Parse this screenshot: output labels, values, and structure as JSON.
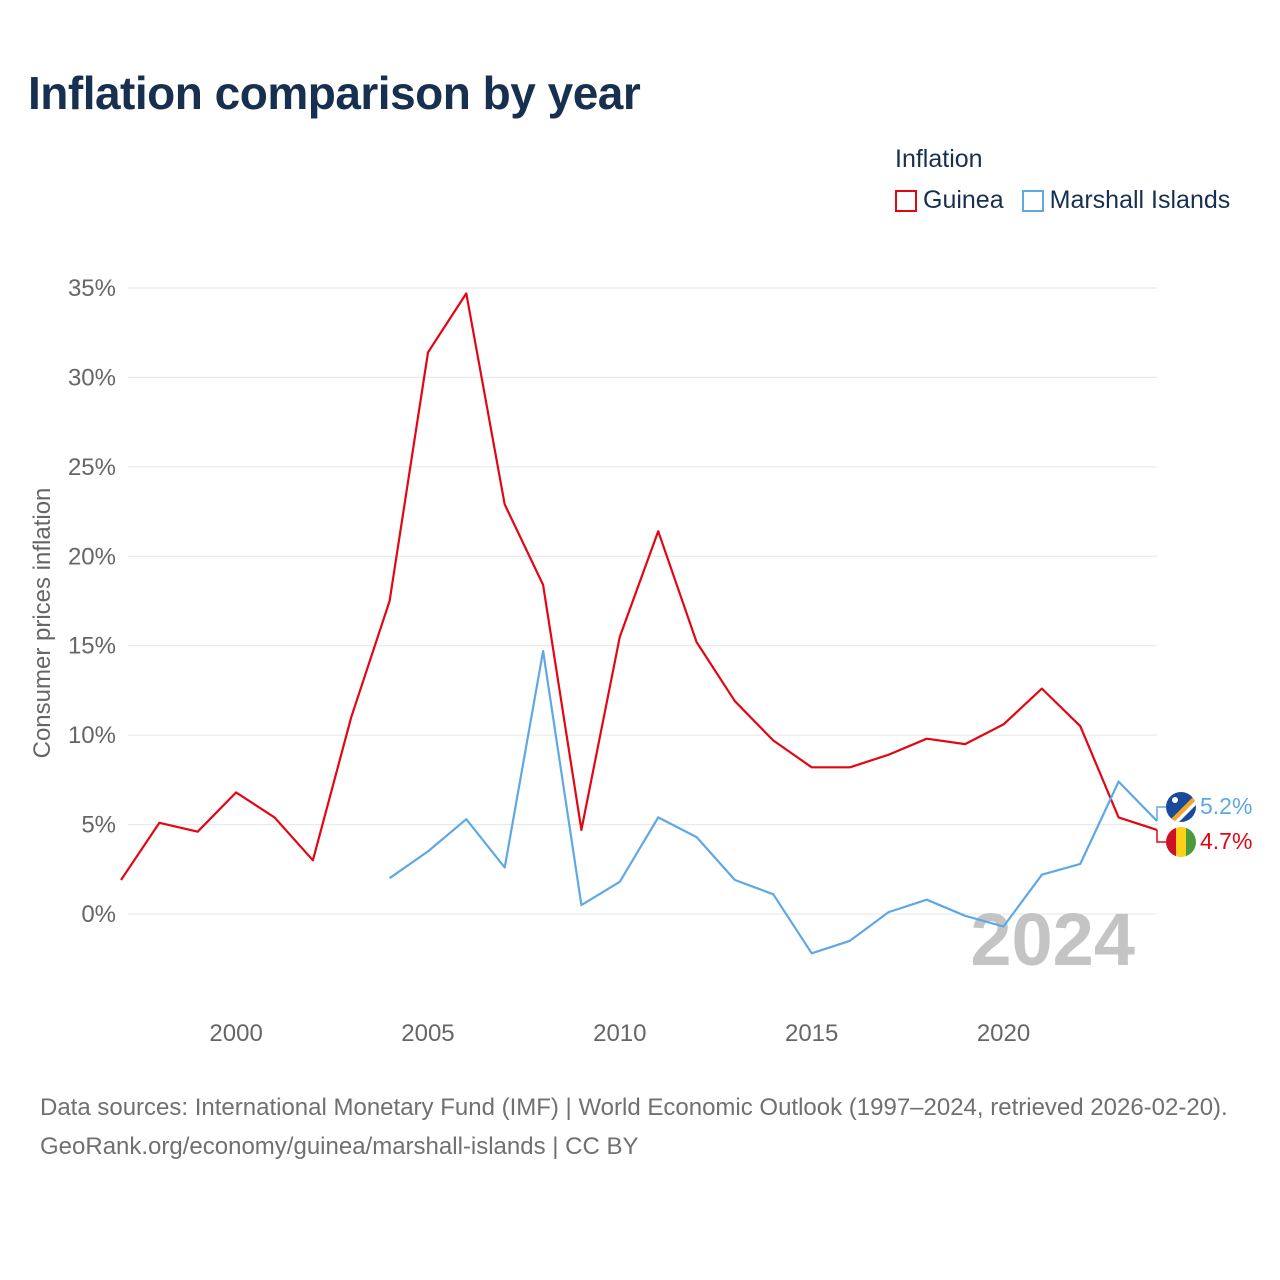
{
  "title": "Inflation comparison by year",
  "legend": {
    "title": "Inflation",
    "items": [
      {
        "name": "Guinea",
        "color": "#e30613"
      },
      {
        "name": "Marshall Islands",
        "color": "#5fa8e3"
      }
    ]
  },
  "chart_data": {
    "type": "line",
    "title": "Inflation comparison by year",
    "xlabel": "",
    "ylabel": "Consumer prices inflation",
    "xlim": [
      1997,
      2024
    ],
    "ylim": [
      -5,
      35
    ],
    "x_ticks": [
      2000,
      2005,
      2010,
      2015,
      2020
    ],
    "x_tick_labels": [
      "2000",
      "2005",
      "2010",
      "2015",
      "2020"
    ],
    "y_ticks": [
      0,
      5,
      10,
      15,
      20,
      25,
      30,
      35
    ],
    "y_tick_labels": [
      "0%",
      "5%",
      "10%",
      "15%",
      "20%",
      "25%",
      "30%",
      "35%"
    ],
    "grid": true,
    "legend_position": "top-right",
    "year_label": "2024",
    "series": [
      {
        "name": "Guinea",
        "color": "#e30613",
        "end_label": "4.7%",
        "points": [
          [
            1997,
            1.9
          ],
          [
            1998,
            5.1
          ],
          [
            1999,
            4.6
          ],
          [
            2000,
            6.8
          ],
          [
            2001,
            5.4
          ],
          [
            2002,
            3.0
          ],
          [
            2003,
            11.0
          ],
          [
            2004,
            17.5
          ],
          [
            2005,
            31.4
          ],
          [
            2006,
            34.7
          ],
          [
            2007,
            22.9
          ],
          [
            2008,
            18.4
          ],
          [
            2009,
            4.7
          ],
          [
            2010,
            15.5
          ],
          [
            2011,
            21.4
          ],
          [
            2012,
            15.2
          ],
          [
            2013,
            11.9
          ],
          [
            2014,
            9.7
          ],
          [
            2015,
            8.2
          ],
          [
            2016,
            8.2
          ],
          [
            2017,
            8.9
          ],
          [
            2018,
            9.8
          ],
          [
            2019,
            9.5
          ],
          [
            2020,
            10.6
          ],
          [
            2021,
            12.6
          ],
          [
            2022,
            10.5
          ],
          [
            2023,
            5.4
          ],
          [
            2024,
            4.7
          ]
        ]
      },
      {
        "name": "Marshall Islands",
        "color": "#5fa8e3",
        "end_label": "5.2%",
        "points": [
          [
            2004,
            2.0
          ],
          [
            2005,
            3.5
          ],
          [
            2006,
            5.3
          ],
          [
            2007,
            2.6
          ],
          [
            2008,
            14.7
          ],
          [
            2009,
            0.5
          ],
          [
            2010,
            1.8
          ],
          [
            2011,
            5.4
          ],
          [
            2012,
            4.3
          ],
          [
            2013,
            1.9
          ],
          [
            2014,
            1.1
          ],
          [
            2015,
            -2.2
          ],
          [
            2016,
            -1.5
          ],
          [
            2017,
            0.1
          ],
          [
            2018,
            0.8
          ],
          [
            2019,
            -0.1
          ],
          [
            2020,
            -0.7
          ],
          [
            2021,
            2.2
          ],
          [
            2022,
            2.8
          ],
          [
            2023,
            7.4
          ],
          [
            2024,
            5.2
          ]
        ]
      }
    ]
  },
  "footer": {
    "sources": "Data sources: International Monetary Fund (IMF) | World Economic Outlook (1997–2024, retrieved 2026-02-20).",
    "attribution": "GeoRank.org/economy/guinea/marshall-islands | CC BY"
  }
}
